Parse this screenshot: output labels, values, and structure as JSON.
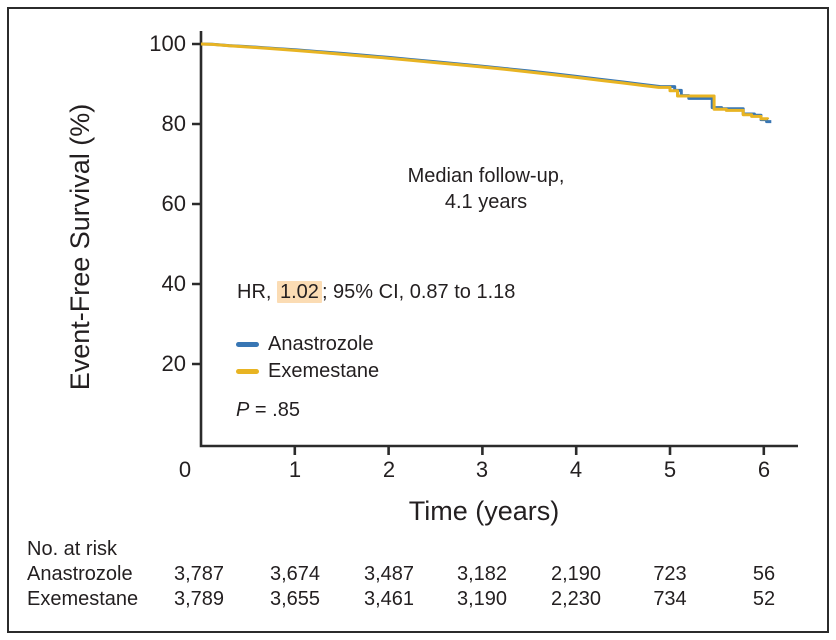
{
  "figure": {
    "background": "#ffffff",
    "border_color": "#2b2b2b",
    "text_color": "#231f20"
  },
  "chart_data": {
    "type": "line",
    "subtype": "kaplan_meier_step",
    "title": "",
    "xlabel": "Time (years)",
    "ylabel": "Event-Free Survival (%)",
    "x_ticks": [
      0,
      1,
      2,
      3,
      4,
      5,
      6
    ],
    "y_ticks": [
      100,
      80,
      60,
      40,
      20
    ],
    "xlim": [
      0,
      6.36
    ],
    "ylim": [
      0,
      100
    ],
    "grid": false,
    "legend_position": "inside-left",
    "axis_color": "#2b2b2b",
    "smooth_until": 4.95,
    "series": [
      {
        "name": "Anastrozole",
        "color": "#3876b4",
        "points": [
          [
            0,
            100
          ],
          [
            0.12,
            99.95
          ],
          [
            0.3,
            99.6
          ],
          [
            0.5,
            99.35
          ],
          [
            0.75,
            98.95
          ],
          [
            1,
            98.55
          ],
          [
            1.25,
            98.1
          ],
          [
            1.5,
            97.65
          ],
          [
            1.75,
            97.15
          ],
          [
            2,
            96.65
          ],
          [
            2.25,
            96.1
          ],
          [
            2.5,
            95.55
          ],
          [
            2.75,
            95.0
          ],
          [
            3,
            94.45
          ],
          [
            3.25,
            93.85
          ],
          [
            3.5,
            93.25
          ],
          [
            3.75,
            92.6
          ],
          [
            4,
            91.9
          ],
          [
            4.25,
            91.2
          ],
          [
            4.5,
            90.5
          ],
          [
            4.7,
            89.9
          ],
          [
            4.9,
            89.35
          ],
          [
            5.05,
            88.4
          ],
          [
            5.12,
            87.1
          ],
          [
            5.2,
            86.4
          ],
          [
            5.45,
            84.1
          ],
          [
            5.55,
            83.8
          ],
          [
            5.78,
            82.5
          ],
          [
            5.9,
            82.2
          ],
          [
            5.97,
            81.1
          ],
          [
            6.03,
            80.6
          ],
          [
            6.08,
            80.6
          ]
        ]
      },
      {
        "name": "Exemestane",
        "color": "#e8b423",
        "points": [
          [
            0,
            100
          ],
          [
            0.12,
            99.9
          ],
          [
            0.3,
            99.55
          ],
          [
            0.5,
            99.25
          ],
          [
            0.75,
            98.85
          ],
          [
            1,
            98.4
          ],
          [
            1.25,
            97.95
          ],
          [
            1.5,
            97.45
          ],
          [
            1.75,
            96.95
          ],
          [
            2,
            96.45
          ],
          [
            2.25,
            95.9
          ],
          [
            2.5,
            95.35
          ],
          [
            2.75,
            94.8
          ],
          [
            3,
            94.25
          ],
          [
            3.25,
            93.65
          ],
          [
            3.5,
            93.0
          ],
          [
            3.75,
            92.35
          ],
          [
            4,
            91.65
          ],
          [
            4.25,
            90.95
          ],
          [
            4.5,
            90.25
          ],
          [
            4.7,
            89.65
          ],
          [
            4.88,
            89.15
          ],
          [
            5.0,
            88.3
          ],
          [
            5.08,
            87.0
          ],
          [
            5.47,
            83.7
          ],
          [
            5.6,
            83.4
          ],
          [
            5.78,
            82.3
          ],
          [
            5.87,
            81.9
          ],
          [
            5.97,
            81.3
          ],
          [
            6.04,
            81.2
          ]
        ]
      }
    ]
  },
  "annotations": {
    "median_line1": "Median follow-up,",
    "median_line2": "4.1 years",
    "hr_prefix": "HR, ",
    "hr_highlight": "1.02",
    "hr_suffix": "; 95% CI, 0.87 to 1.18",
    "hr_highlight_bg": "#fbdcb4",
    "p_label": "P",
    "p_value": " = .85"
  },
  "legend": {
    "items": [
      {
        "label": "Anastrozole"
      },
      {
        "label": "Exemestane"
      }
    ]
  },
  "risk_table": {
    "title": "No. at risk",
    "rows": [
      {
        "label": "Anastrozole",
        "values": [
          "3,787",
          "3,674",
          "3,487",
          "3,182",
          "2,190",
          "723",
          "56"
        ]
      },
      {
        "label": "Exemestane",
        "values": [
          "3,789",
          "3,655",
          "3,461",
          "3,190",
          "2,230",
          "734",
          "52"
        ]
      }
    ]
  }
}
